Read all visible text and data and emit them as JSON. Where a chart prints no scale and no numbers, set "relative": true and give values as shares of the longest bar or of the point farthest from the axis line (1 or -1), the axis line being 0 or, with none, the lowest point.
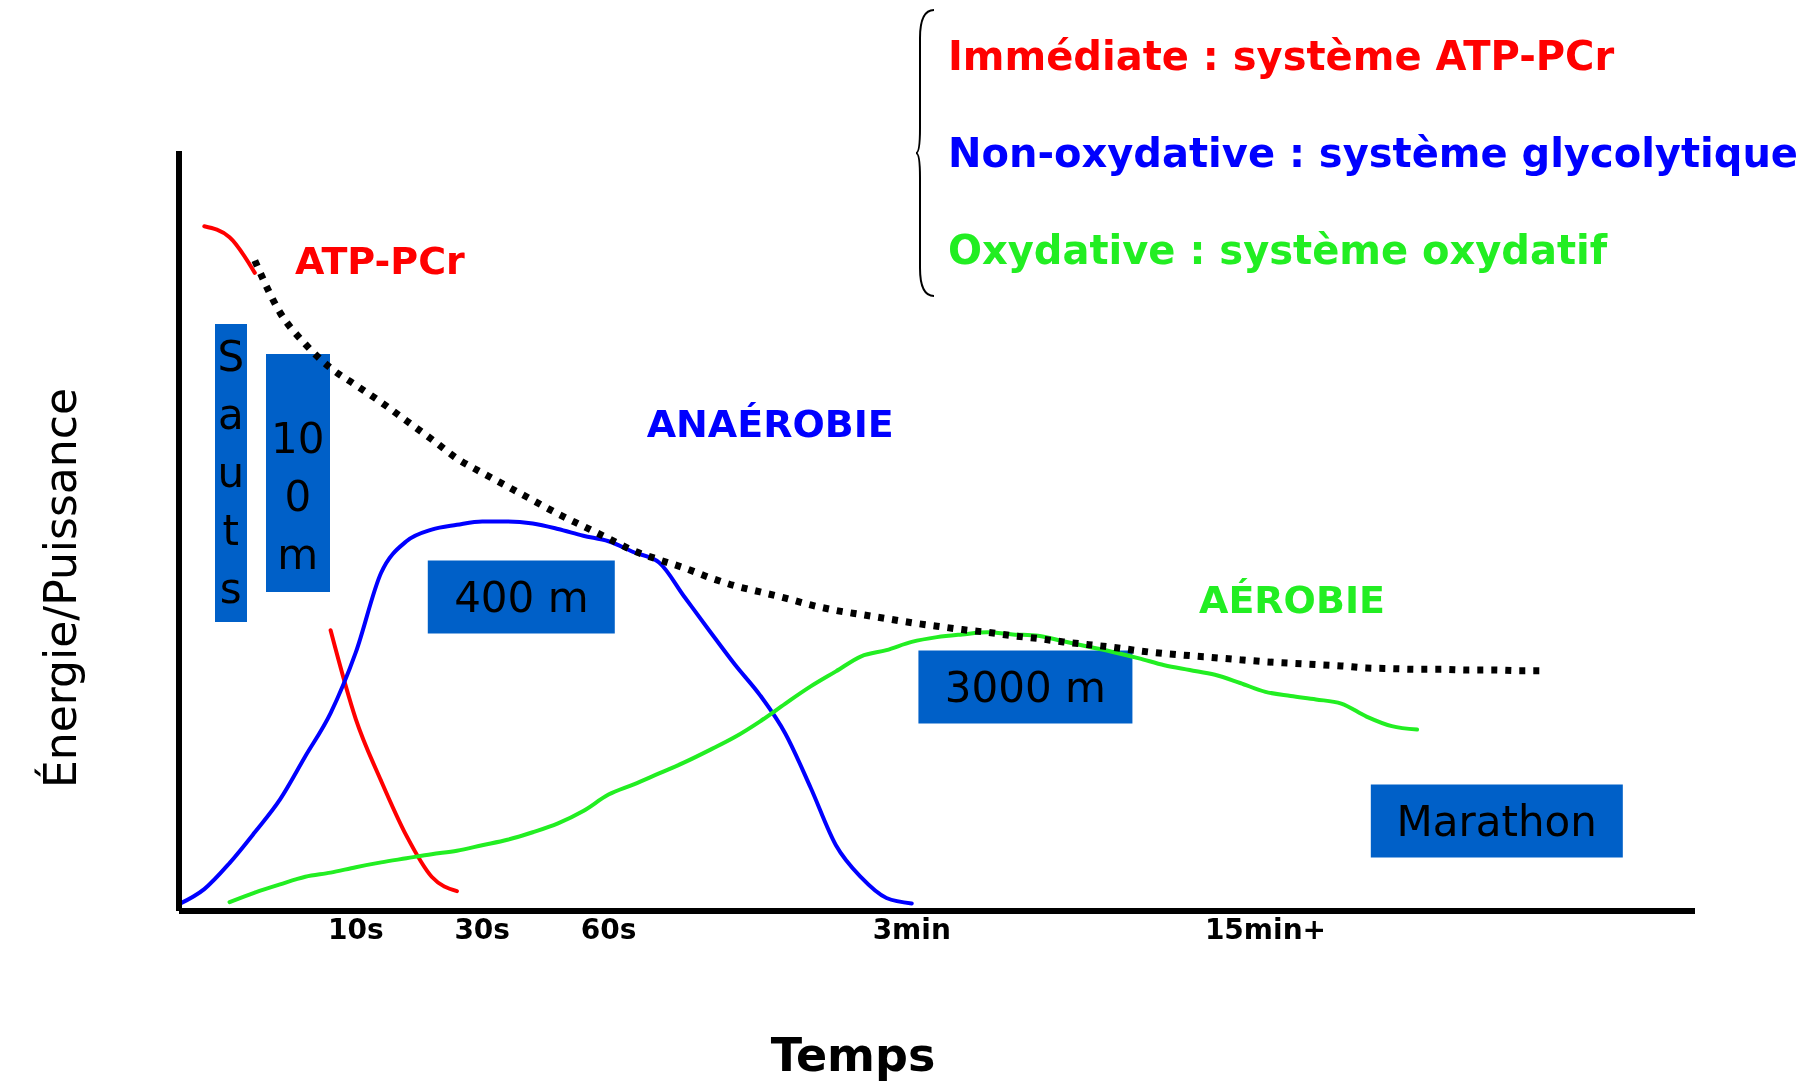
{
  "chart_data": {
    "type": "line",
    "relative": true,
    "xlabel": "Temps",
    "ylabel": "Énergie/Puissance",
    "categories": [
      null,
      null,
      null,
      null,
      null,
      null,
      null,
      "10s",
      null,
      null,
      null,
      null,
      "30s",
      null,
      null,
      null,
      null,
      "60s",
      null,
      null,
      null,
      null,
      null,
      null,
      null,
      null,
      null,
      null,
      null,
      "3min",
      null,
      null,
      null,
      null,
      null,
      null,
      null,
      null,
      null,
      null,
      null,
      null,
      null,
      "15min+",
      null,
      null,
      null,
      null,
      null,
      null,
      null,
      null,
      null,
      null,
      null,
      null,
      null,
      null,
      null,
      null,
      null
    ],
    "legend": "top right",
    "marker": "none",
    "series": [
      {
        "name": "Immédiate : système ATP-PCr",
        "color": "#ff0000",
        "line_style": "solid",
        "values": [
          null,
          1.0,
          0.984,
          0.932,
          null,
          null,
          0.41,
          0.28,
          0.19,
          0.11,
          0.05,
          0.029,
          null,
          null,
          null,
          null,
          null,
          null,
          null,
          null,
          null,
          null,
          null,
          null,
          null,
          null,
          null,
          null,
          null,
          null,
          null,
          null,
          null,
          null,
          null,
          null,
          null,
          null,
          null,
          null,
          null,
          null,
          null,
          null,
          null,
          null,
          null,
          null,
          null,
          null,
          null,
          null,
          null,
          null,
          null,
          null,
          null,
          null,
          null,
          null,
          null
        ]
      },
      {
        "name": "Non-oxydative : système glycolytique",
        "color": "#0000ff",
        "line_style": "solid",
        "values": [
          0.01,
          0.032,
          0.07,
          0.115,
          0.163,
          0.226,
          0.289,
          0.378,
          0.494,
          0.54,
          0.557,
          0.564,
          0.569,
          0.569,
          0.566,
          0.558,
          0.548,
          0.54,
          0.524,
          0.509,
          0.459,
          0.409,
          0.36,
          0.315,
          0.259,
          0.18,
          0.096,
          0.049,
          0.019,
          0.011,
          null,
          null,
          null,
          null,
          null,
          null,
          null,
          null,
          null,
          null,
          null,
          null,
          null,
          null,
          null,
          null,
          null,
          null,
          null,
          null,
          null,
          null,
          null,
          null,
          null,
          null,
          null,
          null,
          null,
          null,
          null
        ]
      },
      {
        "name": "Oxydative : système oxydatif",
        "color": "#22ee22",
        "line_style": "solid",
        "values": [
          null,
          null,
          0.013,
          0.027,
          0.039,
          0.05,
          0.056,
          0.064,
          0.071,
          0.077,
          0.083,
          0.088,
          0.096,
          0.104,
          0.115,
          0.128,
          0.146,
          0.17,
          0.185,
          0.201,
          0.217,
          0.235,
          0.254,
          0.277,
          0.303,
          0.328,
          0.35,
          0.372,
          0.381,
          0.393,
          0.4,
          0.404,
          0.407,
          0.404,
          0.402,
          0.394,
          0.386,
          0.378,
          0.369,
          0.359,
          0.352,
          0.345,
          0.333,
          0.32,
          0.314,
          0.309,
          0.303,
          0.284,
          0.27,
          0.265,
          null,
          null,
          null,
          null,
          null,
          null,
          null,
          null,
          null,
          null,
          null
        ]
      },
      {
        "color": "#000000",
        "line_style": "dotted",
        "values": [
          null,
          null,
          null,
          0.95,
          0.874,
          0.828,
          0.793,
          0.768,
          0.743,
          0.716,
          0.689,
          0.661,
          0.64,
          0.62,
          0.6,
          0.58,
          0.562,
          0.544,
          0.526,
          0.513,
          0.501,
          0.487,
          0.475,
          0.466,
          0.457,
          0.447,
          0.439,
          0.433,
          0.427,
          0.421,
          0.416,
          0.411,
          0.407,
          0.402,
          0.398,
          0.393,
          0.389,
          0.385,
          0.38,
          0.376,
          0.373,
          0.37,
          0.367,
          0.364,
          0.362,
          0.36,
          0.358,
          0.355,
          0.354,
          0.353,
          0.353,
          0.352,
          0.352,
          0.351,
          0.351,
          null,
          null,
          null,
          null,
          null,
          null
        ]
      }
    ],
    "annotations": [
      "ATP-PCr",
      "ANAÉROBIE",
      "AÉROBIE",
      "Sauts",
      "100 m",
      "400 m",
      "3000 m",
      "Marathon"
    ]
  }
}
